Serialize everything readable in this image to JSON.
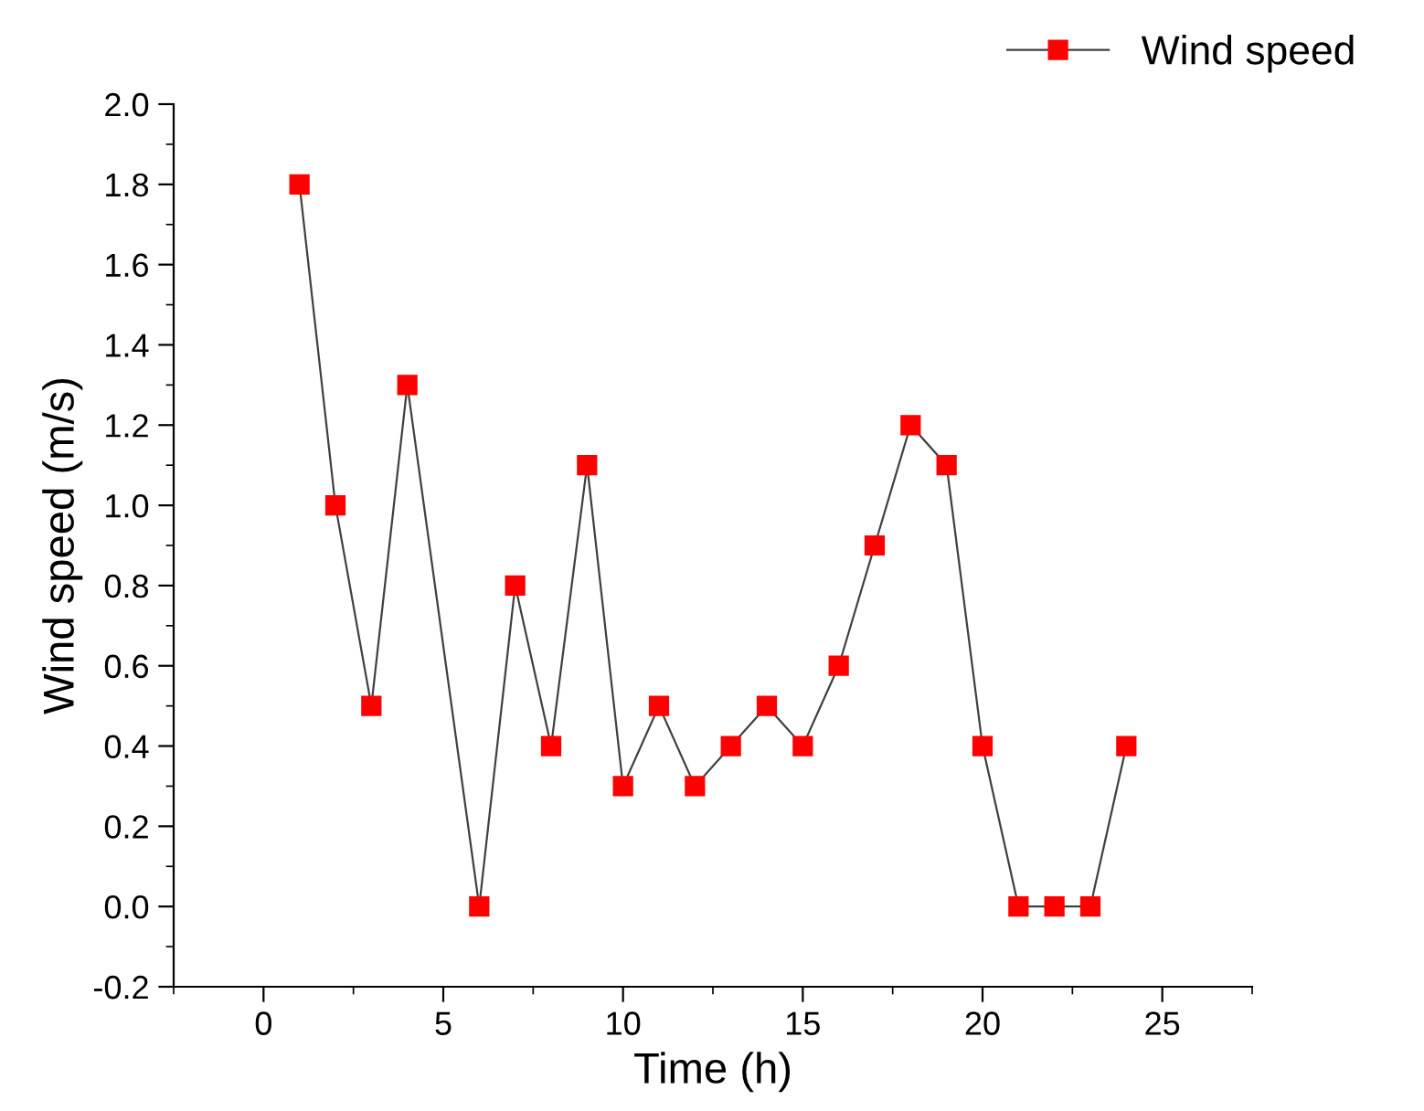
{
  "chart_data": {
    "type": "line",
    "xlabel": "Time (h)",
    "ylabel": "Wind speed (m/s)",
    "series": [
      {
        "name": "Wind speed",
        "color": "#ff0000",
        "x": [
          1,
          2,
          3,
          4,
          6,
          7,
          8,
          9,
          10,
          11,
          12,
          13,
          14,
          15,
          16,
          17,
          18,
          19,
          20,
          21,
          22,
          23,
          24
        ],
        "values": [
          1.8,
          1.0,
          0.5,
          1.3,
          0.0,
          0.8,
          0.4,
          1.1,
          0.3,
          0.5,
          0.3,
          0.4,
          0.5,
          0.4,
          0.6,
          0.9,
          1.2,
          1.1,
          0.4,
          0.0,
          0.0,
          0.0,
          0.4
        ]
      }
    ],
    "xlim": [
      -2.5,
      27.5
    ],
    "xticks": [
      0,
      5,
      10,
      15,
      20,
      25
    ],
    "ylim": [
      -0.2,
      2.0
    ],
    "yticks": [
      {
        "value": -0.2,
        "label": "-0.2"
      },
      {
        "value": 0.0,
        "label": "0.0"
      },
      {
        "value": 0.2,
        "label": "0.2"
      },
      {
        "value": 0.4,
        "label": "0.4"
      },
      {
        "value": 0.6,
        "label": "0.6"
      },
      {
        "value": 0.8,
        "label": "0.8"
      },
      {
        "value": 1.0,
        "label": "1.0"
      },
      {
        "value": 1.2,
        "label": "1.2"
      },
      {
        "value": 1.4,
        "label": "1.4"
      },
      {
        "value": 1.6,
        "label": "1.6"
      },
      {
        "value": 1.8,
        "label": "1.8"
      },
      {
        "value": 2.0,
        "label": "2.0"
      }
    ],
    "marker": "square",
    "line_style": "solid",
    "grid": false,
    "legend": "top right"
  }
}
